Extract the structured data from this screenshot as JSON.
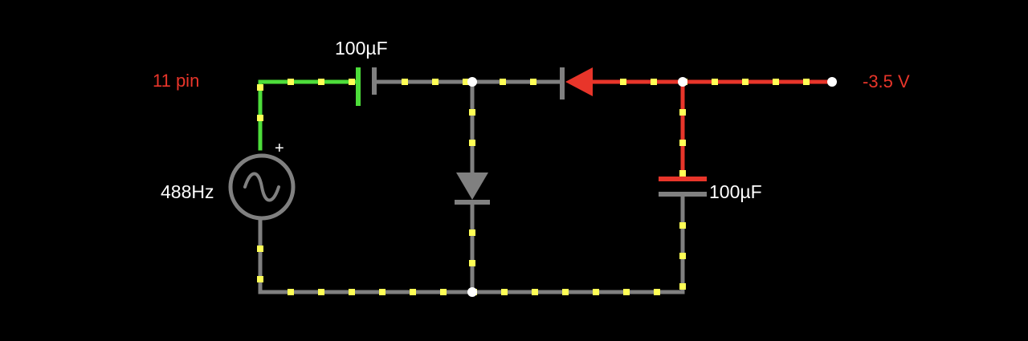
{
  "labels": {
    "pin_name": "11 pin",
    "output_voltage": "-3.5 V",
    "source_frequency": "488Hz",
    "source_polarity": "+",
    "coupling_capacitor": "100µF",
    "filter_capacitor": "100µF"
  },
  "colors": {
    "background": "#000000",
    "wire_idle": "#808080",
    "wire_positive": "#4ddd3a",
    "wire_negative": "#e8352a",
    "current_dots": "#ffff55",
    "node": "#ffffff",
    "text_normal": "#ffffff",
    "text_pin": "#e8352a"
  }
}
